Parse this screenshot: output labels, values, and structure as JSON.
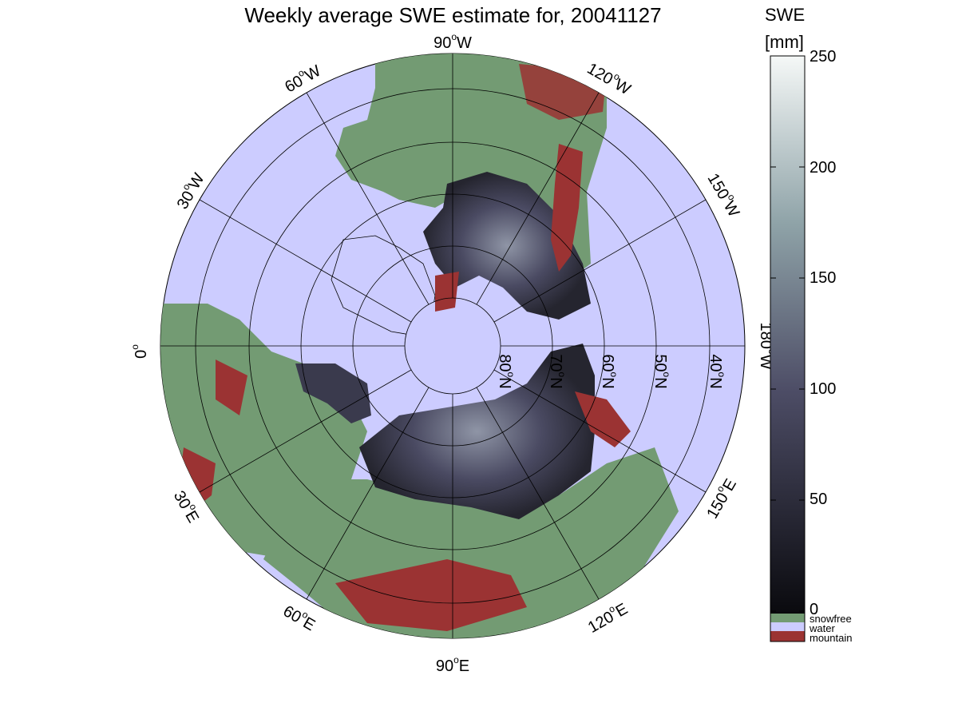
{
  "title": "Weekly average SWE estimate for, 20041127",
  "longitude_labels": [
    {
      "id": "lon-90w",
      "deg": "90",
      "hem": "W"
    },
    {
      "id": "lon-60w",
      "deg": "60",
      "hem": "W"
    },
    {
      "id": "lon-120w",
      "deg": "120",
      "hem": "W"
    },
    {
      "id": "lon-30w",
      "deg": "30",
      "hem": "W"
    },
    {
      "id": "lon-150w",
      "deg": "150",
      "hem": "W"
    },
    {
      "id": "lon-0",
      "deg": "0",
      "hem": ""
    },
    {
      "id": "lon-180w",
      "deg": "180",
      "hem": "W"
    },
    {
      "id": "lon-30e",
      "deg": "30",
      "hem": "E"
    },
    {
      "id": "lon-150e",
      "deg": "150",
      "hem": "E"
    },
    {
      "id": "lon-60e",
      "deg": "60",
      "hem": "E"
    },
    {
      "id": "lon-120e",
      "deg": "120",
      "hem": "E"
    },
    {
      "id": "lon-90e",
      "deg": "90",
      "hem": "E"
    }
  ],
  "latitude_labels": [
    {
      "id": "lat-80n",
      "deg": "80",
      "hem": "N"
    },
    {
      "id": "lat-70n",
      "deg": "70",
      "hem": "N"
    },
    {
      "id": "lat-60n",
      "deg": "60",
      "hem": "N"
    },
    {
      "id": "lat-50n",
      "deg": "50",
      "hem": "N"
    },
    {
      "id": "lat-40n",
      "deg": "40",
      "hem": "N"
    }
  ],
  "colorbar": {
    "title_line1": "SWE",
    "title_line2": "[mm]",
    "ticks": [
      "250",
      "200",
      "150",
      "100",
      "50",
      "0"
    ],
    "categories": [
      "snowfree",
      "water",
      "mountain"
    ]
  },
  "colors": {
    "water": "#ccccff",
    "snowfree": "#739b73",
    "mountain": "#9b3333",
    "swe_low": "#0a0a0e",
    "swe_mid": "#4d4d66",
    "swe_high": "#f5f8f7"
  }
}
